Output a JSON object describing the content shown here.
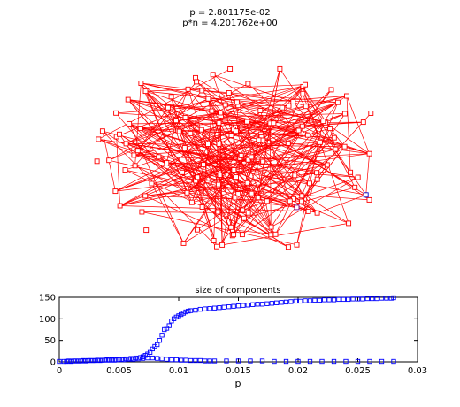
{
  "header": {
    "p_label": "p = 2.801175e-02",
    "pn_label": "p*n = 4.201762e+00"
  },
  "colors": {
    "edge": "#ff0000",
    "node": "#ff0000",
    "highlight": "#0000cc",
    "series": "#0000ff",
    "axis": "#000000"
  },
  "chart_data": [
    {
      "type": "network",
      "title": "",
      "node_marker": "square",
      "edge_color": "#ff0000",
      "node_color": "#ff0000",
      "node_count": 150,
      "highlighted_node_colors": [
        "#0000cc",
        "#800080"
      ]
    },
    {
      "type": "scatter",
      "title": "size of components",
      "xlabel": "p",
      "ylabel": "",
      "xlim": [
        0,
        0.03
      ],
      "ylim": [
        0,
        150
      ],
      "xticks": [
        0,
        0.005,
        0.01,
        0.015,
        0.02,
        0.025,
        0.03
      ],
      "xtick_labels": [
        "0",
        "0.005",
        "0.01",
        "0.015",
        "0.02",
        "0.025",
        "0.03"
      ],
      "yticks": [
        0,
        50,
        100,
        150
      ],
      "ytick_labels": [
        "0",
        "50",
        "100",
        "150"
      ],
      "grid": false,
      "marker": "square",
      "series": [
        {
          "x": [
            0.0,
            0.0004,
            0.0008,
            0.0012,
            0.0016,
            0.002,
            0.0024,
            0.0028,
            0.0032,
            0.0036,
            0.004,
            0.0044,
            0.0048,
            0.0052,
            0.0056,
            0.006,
            0.0064,
            0.0068,
            0.007,
            0.0072,
            0.0074,
            0.0076,
            0.0078,
            0.008,
            0.0082,
            0.0084,
            0.0086,
            0.0088,
            0.009,
            0.0092,
            0.0094,
            0.0096,
            0.0098,
            0.01,
            0.0102,
            0.0104,
            0.0106,
            0.0108,
            0.011,
            0.0114,
            0.0118,
            0.0122,
            0.0126,
            0.013,
            0.0134,
            0.0138,
            0.0142,
            0.0146,
            0.015,
            0.0154,
            0.0158,
            0.0162,
            0.0166,
            0.017,
            0.0174,
            0.0178,
            0.0182,
            0.0186,
            0.019,
            0.0194,
            0.0198,
            0.0202,
            0.0206,
            0.021,
            0.0214,
            0.0218,
            0.0222,
            0.0226,
            0.023,
            0.0234,
            0.0238,
            0.0242,
            0.0246,
            0.025,
            0.0254,
            0.0258,
            0.0262,
            0.0266,
            0.027,
            0.0274,
            0.0278,
            0.028
          ],
          "y": [
            1,
            1,
            2,
            2,
            2,
            3,
            3,
            3,
            4,
            4,
            5,
            5,
            5,
            6,
            7,
            8,
            9,
            10,
            12,
            15,
            18,
            22,
            30,
            36,
            40,
            50,
            62,
            75,
            78,
            84,
            95,
            100,
            104,
            107,
            110,
            113,
            116,
            118,
            119,
            120,
            122,
            123,
            124,
            125,
            126,
            127,
            128,
            129,
            130,
            131,
            132,
            133,
            134,
            134,
            135,
            136,
            137,
            138,
            139,
            140,
            141,
            141,
            142,
            142,
            143,
            143,
            144,
            144,
            144,
            145,
            145,
            145,
            146,
            146,
            146,
            147,
            147,
            147,
            148,
            148,
            148,
            149
          ]
        },
        {
          "x": [
            0.0006,
            0.001,
            0.0014,
            0.0018,
            0.0022,
            0.0026,
            0.003,
            0.0034,
            0.0038,
            0.0042,
            0.0046,
            0.005,
            0.0054,
            0.0058,
            0.0062,
            0.0066,
            0.007,
            0.0074,
            0.0078,
            0.0082,
            0.0086,
            0.009,
            0.0094,
            0.0098,
            0.0102,
            0.0106,
            0.011,
            0.0114,
            0.0118,
            0.0122,
            0.0126,
            0.013,
            0.014,
            0.015,
            0.016,
            0.017,
            0.018,
            0.019,
            0.02,
            0.021,
            0.022,
            0.023,
            0.024,
            0.025,
            0.026,
            0.027,
            0.028
          ],
          "y": [
            1,
            1,
            2,
            2,
            2,
            3,
            3,
            3,
            4,
            4,
            4,
            5,
            5,
            6,
            6,
            7,
            8,
            9,
            9,
            8,
            7,
            6,
            5,
            5,
            4,
            4,
            3,
            3,
            3,
            2,
            2,
            2,
            2,
            2,
            2,
            2,
            1,
            1,
            1,
            1,
            1,
            1,
            1,
            1,
            1,
            1,
            1
          ]
        }
      ]
    }
  ]
}
